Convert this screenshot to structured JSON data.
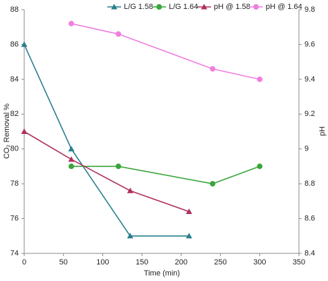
{
  "chart_data": {
    "type": "line",
    "xlabel": "Time (min)",
    "ylabel": "CO₂ Removal %",
    "y2label": "pH",
    "xlim": [
      0,
      350
    ],
    "xticks": [
      0,
      50,
      100,
      150,
      200,
      250,
      300,
      350
    ],
    "ylim": [
      74,
      88
    ],
    "yticks": [
      74,
      76,
      78,
      80,
      82,
      84,
      86,
      88
    ],
    "y2lim": [
      8.4,
      9.8
    ],
    "y2ticks": [
      8.4,
      8.6,
      8.8,
      9,
      9.2,
      9.4,
      9.6,
      9.8
    ],
    "series": [
      {
        "name": "L/G 1.58",
        "color": "#2a7f8e",
        "marker": "triangle",
        "x": [
          0,
          60,
          135,
          210
        ],
        "values": [
          86,
          80,
          75,
          75
        ]
      },
      {
        "name": "L/G 1.64",
        "color": "#3aa63a",
        "marker": "circle",
        "x": [
          60,
          120,
          240,
          300
        ],
        "values": [
          79,
          79,
          78,
          79
        ]
      },
      {
        "name": "pH @ 1.58",
        "color": "#b03060",
        "marker": "triangle",
        "axis": "y2",
        "x": [
          0,
          60,
          135,
          210
        ],
        "values": [
          9.1,
          8.94,
          8.76,
          8.64
        ]
      },
      {
        "name": "pH @ 1.64",
        "color": "#f07ee0",
        "marker": "circle",
        "axis": "y2",
        "x": [
          60,
          120,
          240,
          300
        ],
        "values": [
          9.72,
          9.66,
          9.46,
          9.4
        ]
      }
    ]
  }
}
